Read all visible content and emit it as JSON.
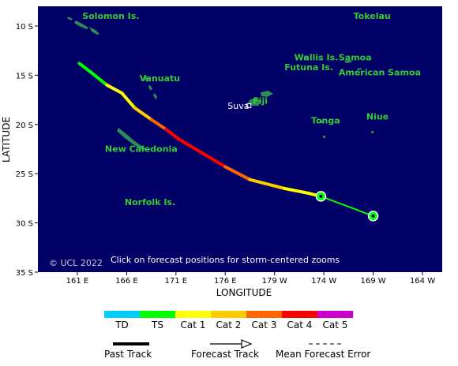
{
  "axes": {
    "x_title": "LONGITUDE",
    "y_title": "LATITUDE",
    "x_ticks": [
      "161 E",
      "166 E",
      "171 E",
      "176 E",
      "179 W",
      "174 W",
      "169 W",
      "164 W"
    ],
    "y_ticks": [
      "10 S",
      "15 S",
      "20 S",
      "25 S",
      "30 S",
      "35 S"
    ]
  },
  "map": {
    "ocean_color": "#000066",
    "land_color": "#2e8b57",
    "label_color": "#33cc33",
    "copyright": "© UCL 2022",
    "instruction": "Click on forecast positions for storm-centered zooms",
    "place_labels": [
      {
        "name": "Solomon Is.",
        "lon": 161.5,
        "lat": -9.3
      },
      {
        "name": "Tokelau",
        "lon": -171.0,
        "lat": -9.3
      },
      {
        "name": "Wallis Is.",
        "lon": -177.0,
        "lat": -13.5
      },
      {
        "name": "Futuna Is.",
        "lon": -178.0,
        "lat": -14.5
      },
      {
        "name": "Samoa",
        "lon": -172.5,
        "lat": -13.5
      },
      {
        "name": "American Samoa",
        "lon": -172.5,
        "lat": -15.0
      },
      {
        "name": "Vanuatu",
        "lon": 167.3,
        "lat": -15.6
      },
      {
        "name": "Fiji",
        "lon": 178.8,
        "lat": -17.9
      },
      {
        "name": "Tonga",
        "lon": -175.3,
        "lat": -19.9
      },
      {
        "name": "Niue",
        "lon": -169.7,
        "lat": -19.5
      },
      {
        "name": "New Caledonia",
        "lon": 163.8,
        "lat": -22.8
      },
      {
        "name": "Norfolk Is.",
        "lon": 165.8,
        "lat": -28.2
      }
    ],
    "cities": [
      {
        "name": "Suva",
        "lon": 178.4,
        "lat": -18.1
      }
    ]
  },
  "track": {
    "past": [
      {
        "lon": 161.2,
        "lat": -13.8,
        "cat": "TS"
      },
      {
        "lon": 162.5,
        "lat": -14.8,
        "cat": "TS"
      },
      {
        "lon": 164.0,
        "lat": -16.0,
        "cat": "TS"
      },
      {
        "lon": 165.5,
        "lat": -16.8,
        "cat": "Cat 1"
      },
      {
        "lon": 166.8,
        "lat": -18.3,
        "cat": "Cat 1"
      },
      {
        "lon": 168.5,
        "lat": -19.5,
        "cat": "Cat 2"
      },
      {
        "lon": 170.0,
        "lat": -20.5,
        "cat": "Cat 3"
      },
      {
        "lon": 171.3,
        "lat": -21.5,
        "cat": "Cat 4"
      },
      {
        "lon": 173.5,
        "lat": -22.8,
        "cat": "Cat 4"
      },
      {
        "lon": 176.0,
        "lat": -24.3,
        "cat": "Cat 4"
      },
      {
        "lon": 178.5,
        "lat": -25.6,
        "cat": "Cat 3"
      },
      {
        "lon": -178.0,
        "lat": -26.5,
        "cat": "Cat 2"
      },
      {
        "lon": -175.5,
        "lat": -27.0,
        "cat": "Cat 1"
      },
      {
        "lon": -174.3,
        "lat": -27.3,
        "cat": "Cat 1"
      }
    ],
    "forecast": [
      {
        "lon": -174.3,
        "lat": -27.3
      },
      {
        "lon": -169.0,
        "lat": -29.3
      }
    ]
  },
  "legend": {
    "categories": [
      {
        "label": "TD",
        "color": "#00ccff"
      },
      {
        "label": "TS",
        "color": "#00ff00"
      },
      {
        "label": "Cat 1",
        "color": "#ffff00"
      },
      {
        "label": "Cat 2",
        "color": "#ffcc00"
      },
      {
        "label": "Cat 3",
        "color": "#ff6600"
      },
      {
        "label": "Cat 4",
        "color": "#ff0000"
      },
      {
        "label": "Cat 5",
        "color": "#cc00cc"
      }
    ],
    "past_track": "Past Track",
    "forecast_track": "Forecast Track",
    "mean_error": "Mean Forecast Error"
  }
}
